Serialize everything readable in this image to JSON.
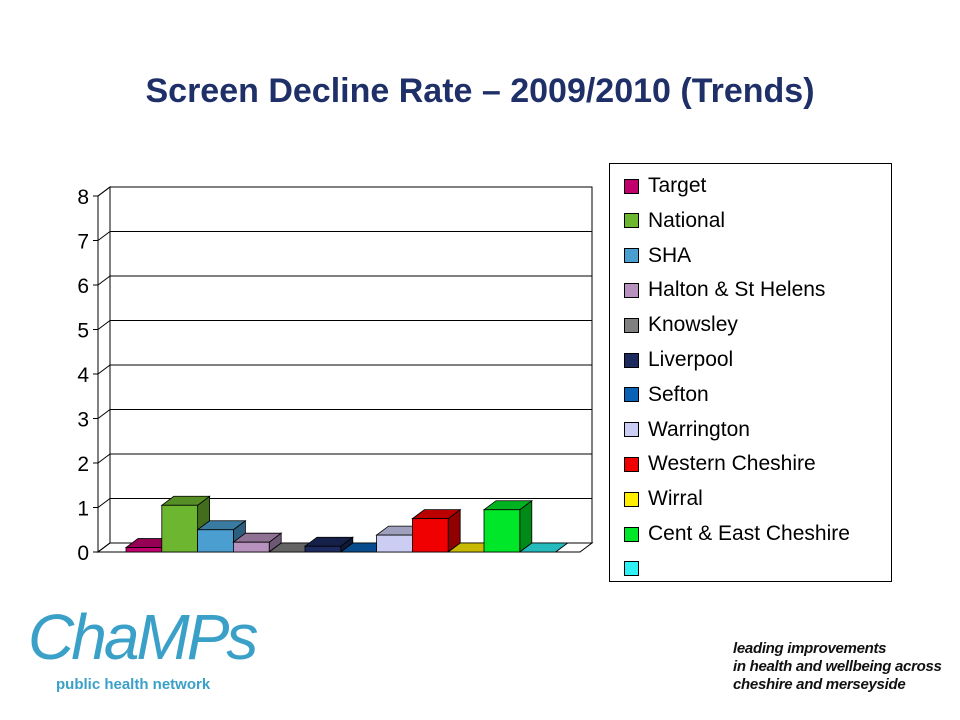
{
  "chart_data": {
    "type": "bar",
    "style": "3d-clustered",
    "title": "Screen Decline Rate – 2009/2010 (Trends)",
    "ylim": [
      0,
      8
    ],
    "y_ticks": [
      "0",
      "1",
      "2",
      "3",
      "4",
      "5",
      "6",
      "7",
      "8"
    ],
    "grid": true,
    "legend_position": "right",
    "series": [
      {
        "name": "Target",
        "value": 0.1,
        "color": "#c0006c"
      },
      {
        "name": "National",
        "value": 1.05,
        "color": "#6cb630"
      },
      {
        "name": "SHA",
        "value": 0.5,
        "color": "#4a9ed0"
      },
      {
        "name": "Halton & St Helens",
        "value": 0.22,
        "color": "#b892bf"
      },
      {
        "name": "Knowsley",
        "value": 0.0,
        "color": "#808080"
      },
      {
        "name": "Liverpool",
        "value": 0.13,
        "color": "#1c2a5e"
      },
      {
        "name": "Sefton",
        "value": 0.0,
        "color": "#0a62b6"
      },
      {
        "name": "Warrington",
        "value": 0.38,
        "color": "#cccdf2"
      },
      {
        "name": "Western Cheshire",
        "value": 0.75,
        "color": "#f00000"
      },
      {
        "name": "Wirral",
        "value": 0.0,
        "color": "#ffee00"
      },
      {
        "name": "Cent & East Cheshire",
        "value": 0.95,
        "color": "#00e628"
      },
      {
        "name": "",
        "value": 0.0,
        "color": "#2ff0f2"
      }
    ]
  },
  "logo": {
    "name": "ChaMPs",
    "subtitle": "public health network",
    "color": "#3aa0c8"
  },
  "tagline": [
    "leading improvements",
    "in health and wellbeing across",
    "cheshire and merseyside"
  ]
}
